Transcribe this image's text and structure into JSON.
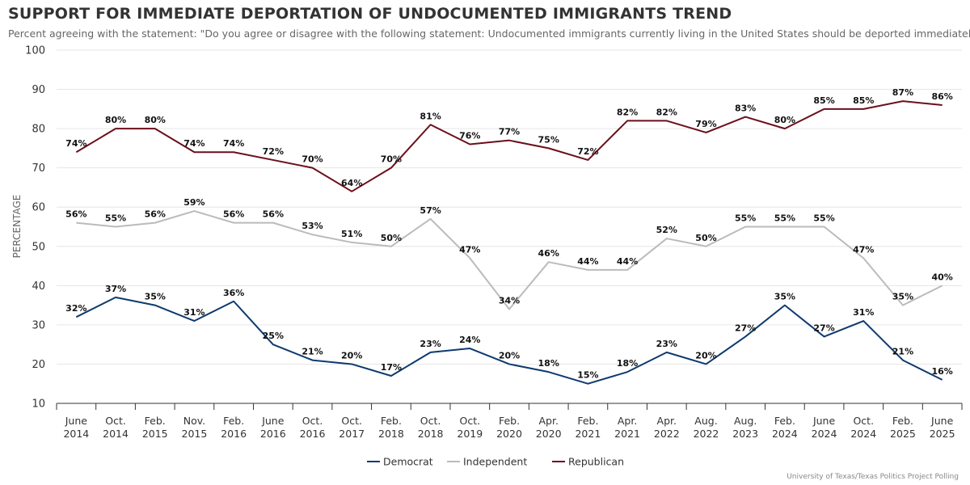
{
  "colors": {
    "Democrat": "#0e3a6e",
    "Independent": "#bbbbbb",
    "Republican": "#6b0f1a"
  },
  "chart_data": {
    "type": "line",
    "title": "SUPPORT FOR IMMEDIATE DEPORTATION OF UNDOCUMENTED IMMIGRANTS TREND",
    "subtitle": "Percent agreeing with the statement: \"Do you agree or disagree with the following statement: Undocumented immigrants currently living in the United States should be deported immediately.\"",
    "ylabel": "PERCENTAGE",
    "xlabel": "",
    "ylim": [
      10,
      100
    ],
    "yticks": [
      10,
      20,
      30,
      40,
      50,
      60,
      70,
      80,
      90,
      100
    ],
    "grid": true,
    "legend_position": "bottom-center",
    "categories": [
      [
        "June",
        "2014"
      ],
      [
        "Oct.",
        "2014"
      ],
      [
        "Feb.",
        "2015"
      ],
      [
        "Nov.",
        "2015"
      ],
      [
        "Feb.",
        "2016"
      ],
      [
        "June",
        "2016"
      ],
      [
        "Oct.",
        "2016"
      ],
      [
        "Oct.",
        "2017"
      ],
      [
        "Feb.",
        "2018"
      ],
      [
        "Oct.",
        "2018"
      ],
      [
        "Oct.",
        "2019"
      ],
      [
        "Feb.",
        "2020"
      ],
      [
        "Apr.",
        "2020"
      ],
      [
        "Feb.",
        "2021"
      ],
      [
        "Apr.",
        "2021"
      ],
      [
        "Apr.",
        "2022"
      ],
      [
        "Aug.",
        "2022"
      ],
      [
        "Aug.",
        "2023"
      ],
      [
        "Feb.",
        "2024"
      ],
      [
        "June",
        "2024"
      ],
      [
        "Oct.",
        "2024"
      ],
      [
        "Feb.",
        "2025"
      ],
      [
        "June",
        "2025"
      ]
    ],
    "series": [
      {
        "name": "Democrat",
        "values": [
          32,
          37,
          35,
          31,
          36,
          25,
          21,
          20,
          17,
          23,
          24,
          20,
          18,
          15,
          18,
          23,
          20,
          27,
          35,
          27,
          31,
          21,
          16
        ]
      },
      {
        "name": "Independent",
        "values": [
          56,
          55,
          56,
          59,
          56,
          56,
          53,
          51,
          50,
          57,
          47,
          34,
          46,
          44,
          44,
          52,
          50,
          55,
          55,
          55,
          47,
          35,
          40
        ]
      },
      {
        "name": "Republican",
        "values": [
          74,
          80,
          80,
          74,
          74,
          72,
          70,
          64,
          70,
          81,
          76,
          77,
          75,
          72,
          82,
          82,
          79,
          83,
          80,
          85,
          85,
          87,
          86
        ]
      }
    ],
    "source": "University of Texas/Texas Politics Project Polling"
  }
}
